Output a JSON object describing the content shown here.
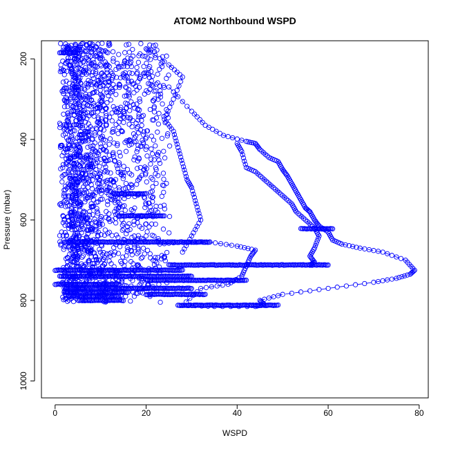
{
  "chart_data": {
    "type": "scatter",
    "title": "ATOM2 Northbound WSPD",
    "xlabel": "WSPD",
    "ylabel": "Pressure (mbar)",
    "xlim": [
      -3,
      82
    ],
    "ylim": [
      1042,
      155
    ],
    "y_reversed": true,
    "x_ticks": [
      "0",
      "20",
      "40",
      "60",
      "80"
    ],
    "y_ticks": [
      "200",
      "400",
      "600",
      "800",
      "1000"
    ],
    "grid": false,
    "legend": "none",
    "marker": "open-circle",
    "point_color": "#0000ff",
    "line_color": "#0000ff",
    "line_style": "long-dash",
    "series": [
      {
        "profile_points": [
          [
            25,
            270
          ],
          [
            30,
            330
          ],
          [
            33,
            365
          ],
          [
            37,
            390
          ],
          [
            42,
            405
          ],
          [
            44,
            410
          ],
          [
            45,
            425
          ],
          [
            47,
            445
          ],
          [
            49,
            455
          ],
          [
            50,
            475
          ],
          [
            51,
            490
          ],
          [
            52,
            510
          ],
          [
            53,
            530
          ],
          [
            54,
            550
          ],
          [
            55,
            570
          ],
          [
            56,
            580
          ],
          [
            57,
            600
          ],
          [
            58,
            615
          ],
          [
            60,
            630
          ],
          [
            61,
            650
          ],
          [
            63,
            660
          ],
          [
            67,
            670
          ],
          [
            72,
            680
          ],
          [
            77,
            700
          ],
          [
            79,
            725
          ],
          [
            78,
            735
          ],
          [
            75,
            745
          ],
          [
            70,
            755
          ],
          [
            60,
            770
          ],
          [
            50,
            785
          ],
          [
            45,
            800
          ],
          [
            46,
            810
          ],
          [
            44,
            815
          ],
          [
            35,
            815
          ],
          [
            28,
            812
          ],
          [
            32,
            770
          ],
          [
            38,
            760
          ],
          [
            41,
            740
          ],
          [
            42,
            715
          ],
          [
            43,
            690
          ],
          [
            44,
            675
          ],
          [
            40,
            665
          ],
          [
            34,
            655
          ],
          [
            28,
            655
          ],
          [
            23,
            660
          ]
        ],
        "profile_points_b": [
          [
            20,
            175
          ],
          [
            25,
            215
          ],
          [
            28,
            245
          ],
          [
            26,
            300
          ],
          [
            24,
            350
          ],
          [
            26,
            380
          ],
          [
            27,
            420
          ],
          [
            28,
            460
          ],
          [
            29,
            500
          ],
          [
            30,
            520
          ],
          [
            31,
            560
          ],
          [
            32,
            600
          ],
          [
            30,
            640
          ],
          [
            28,
            680
          ]
        ],
        "profile_points_c": [
          [
            40,
            410
          ],
          [
            41,
            430
          ],
          [
            42,
            470
          ],
          [
            44,
            480
          ],
          [
            46,
            500
          ],
          [
            48,
            520
          ],
          [
            50,
            540
          ],
          [
            52,
            560
          ],
          [
            53,
            580
          ],
          [
            55,
            600
          ],
          [
            57,
            620
          ],
          [
            58,
            640
          ],
          [
            57,
            670
          ],
          [
            56,
            690
          ],
          [
            57,
            705
          ],
          [
            56,
            712
          ]
        ],
        "horizontal_bands": [
          {
            "y": 655,
            "x_start": 2,
            "x_end": 34
          },
          {
            "y": 712,
            "x_start": 25,
            "x_end": 60
          },
          {
            "y": 725,
            "x_start": 0,
            "x_end": 28
          },
          {
            "y": 740,
            "x_start": 1,
            "x_end": 30
          },
          {
            "y": 750,
            "x_start": 20,
            "x_end": 42
          },
          {
            "y": 760,
            "x_start": 0,
            "x_end": 14
          },
          {
            "y": 770,
            "x_start": 2,
            "x_end": 30
          },
          {
            "y": 780,
            "x_start": 2,
            "x_end": 16
          },
          {
            "y": 785,
            "x_start": 20,
            "x_end": 33
          },
          {
            "y": 790,
            "x_start": 3,
            "x_end": 14
          },
          {
            "y": 800,
            "x_start": 5,
            "x_end": 15
          },
          {
            "y": 812,
            "x_start": 27,
            "x_end": 49
          },
          {
            "y": 622,
            "x_start": 54,
            "x_end": 61
          },
          {
            "y": 590,
            "x_start": 14,
            "x_end": 24
          },
          {
            "y": 535,
            "x_start": 13,
            "x_end": 20
          },
          {
            "y": 185,
            "x_start": 1,
            "x_end": 5
          }
        ],
        "dense_region": {
          "x_min": 0,
          "x_max": 26,
          "y_min": 160,
          "y_max": 805,
          "x_mode": 5,
          "count": 1900
        }
      }
    ]
  }
}
